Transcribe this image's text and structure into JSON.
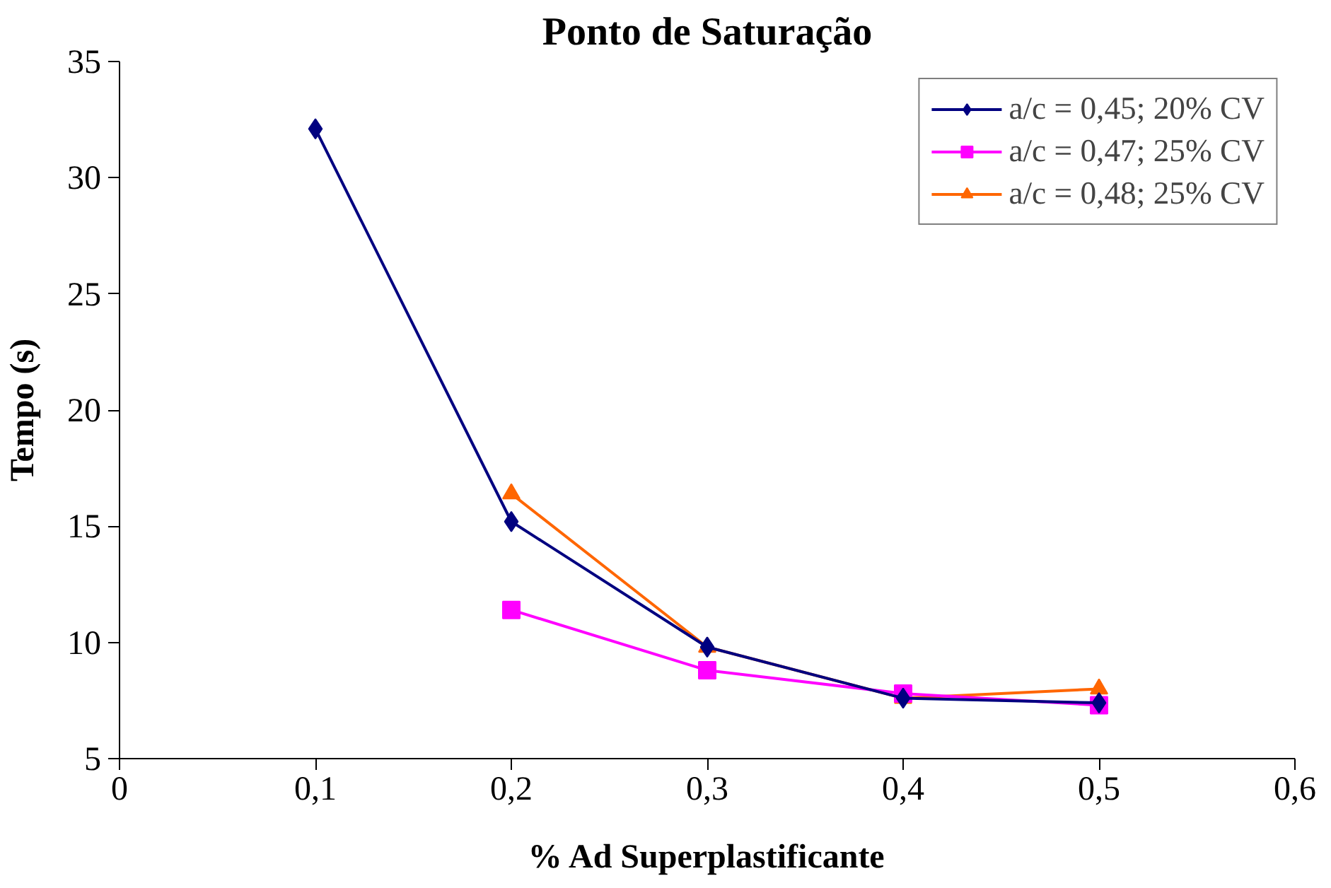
{
  "chart_data": {
    "type": "line",
    "title": "Ponto de Saturação",
    "xlabel": "% Ad Superplastificante",
    "ylabel": "Tempo (s)",
    "xlim": [
      0,
      0.6
    ],
    "xticks": [
      {
        "value": 0,
        "label": "0"
      },
      {
        "value": 0.1,
        "label": "0,1"
      },
      {
        "value": 0.2,
        "label": "0,2"
      },
      {
        "value": 0.3,
        "label": "0,3"
      },
      {
        "value": 0.4,
        "label": "0,4"
      },
      {
        "value": 0.5,
        "label": "0,5"
      },
      {
        "value": 0.6,
        "label": "0,6"
      }
    ],
    "ylim": [
      5,
      35
    ],
    "yticks": [
      5,
      10,
      15,
      20,
      25,
      30,
      35
    ],
    "grid": false,
    "legend": "top right",
    "line_style": "solid",
    "series": [
      {
        "name": "a/c = 0,45; 20% CV",
        "color": "#000080",
        "marker": "diamond",
        "x": [
          0.1,
          0.2,
          0.3,
          0.4,
          0.5
        ],
        "values": [
          32.1,
          15.2,
          9.8,
          7.6,
          7.4
        ]
      },
      {
        "name": "a/c = 0,47; 25% CV",
        "color": "#ff00ff",
        "marker": "square",
        "x": [
          0.2,
          0.3,
          0.4,
          0.5
        ],
        "values": [
          11.4,
          8.8,
          7.8,
          7.3
        ]
      },
      {
        "name": "a/c = 0,48; 25% CV",
        "color": "#ff6600",
        "marker": "triangle",
        "x": [
          0.2,
          0.3,
          0.4,
          0.5
        ],
        "values": [
          16.4,
          9.8,
          7.6,
          8.0
        ]
      }
    ]
  }
}
